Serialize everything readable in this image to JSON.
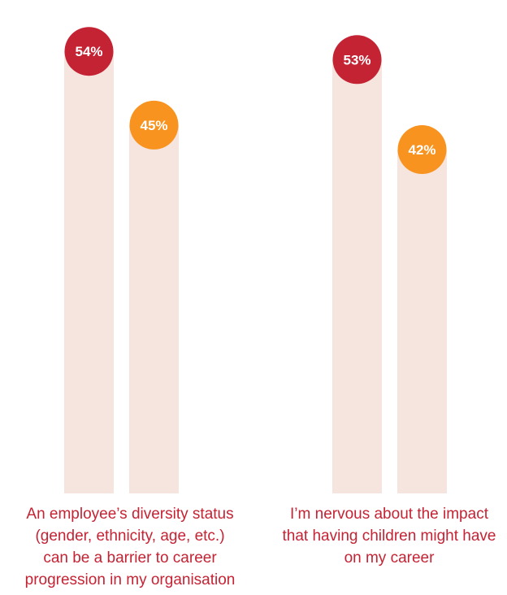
{
  "chart_data": {
    "type": "bar",
    "categories": [
      "An employee’s diversity status (gender, ethnicity, age, etc.) can be a barrier to career progression in my organisation",
      "I’m nervous about the impact that having children might have on my career"
    ],
    "category_lines": [
      [
        "An employee’s diversity status",
        "(gender, ethnicity, age, etc.)",
        "can be a barrier to career",
        "progression in my organisation"
      ],
      [
        "I’m nervous about the impact",
        "that having children might have",
        "on my career"
      ]
    ],
    "series": [
      {
        "values": [
          54,
          53
        ],
        "labels": [
          "54%",
          "53%"
        ],
        "color": "#c42334"
      },
      {
        "values": [
          45,
          42
        ],
        "labels": [
          "45%",
          "42%"
        ],
        "color": "#f7931e"
      }
    ],
    "bar_background_color": "#f6e4df",
    "ylim": [
      0,
      100
    ],
    "value_unit": "%",
    "grid": false,
    "legend": "none"
  }
}
